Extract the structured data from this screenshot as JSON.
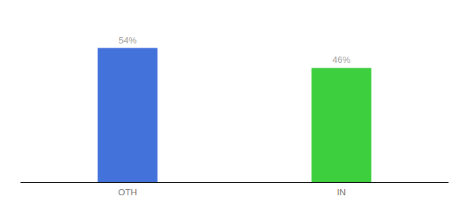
{
  "chart_data": {
    "type": "bar",
    "categories": [
      "OTH",
      "IN"
    ],
    "values": [
      54,
      46
    ],
    "colors": [
      "#4472db",
      "#3ecf3e"
    ],
    "value_labels": [
      "54%",
      "46%"
    ],
    "data_labels": true,
    "ylim": [
      0,
      65
    ],
    "grid": false,
    "tick_labels": "x"
  }
}
